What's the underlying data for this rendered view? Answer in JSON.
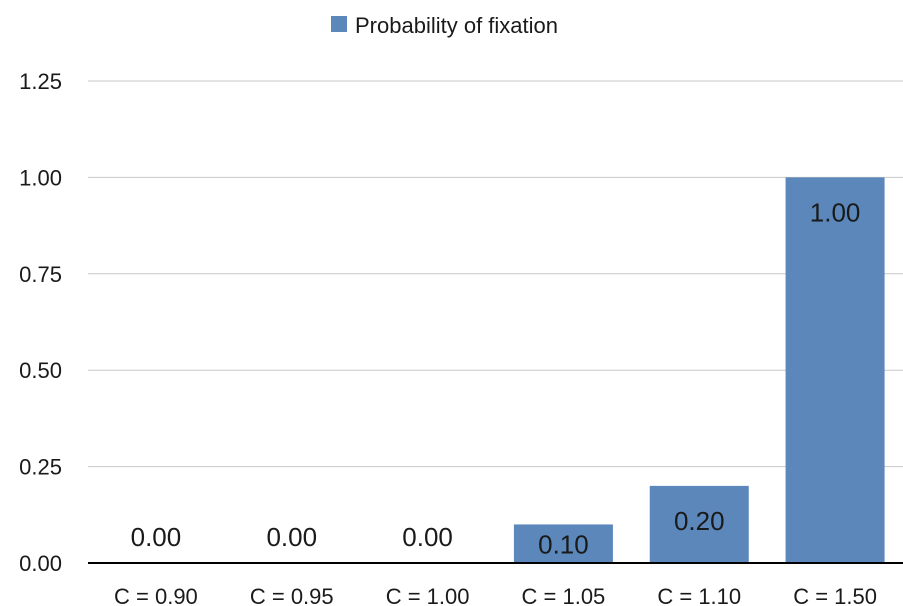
{
  "chart_data": {
    "type": "bar",
    "categories": [
      "C = 0.90",
      "C = 0.95",
      "C = 1.00",
      "C = 1.05",
      "C = 1.10",
      "C = 1.50"
    ],
    "series": [
      {
        "name": "Probability of fixation",
        "values": [
          0.0,
          0.0,
          0.0,
          0.1,
          0.2,
          1.0
        ]
      }
    ],
    "data_labels": [
      "0.00",
      "0.00",
      "0.00",
      "0.10",
      "0.20",
      "1.00"
    ],
    "y_ticks": [
      "0.00",
      "0.25",
      "0.50",
      "0.75",
      "1.00",
      "1.25"
    ],
    "ylim": [
      0,
      1.25
    ],
    "grid": true,
    "legend_position": "top-center",
    "bar_color": "#5b87bb"
  }
}
